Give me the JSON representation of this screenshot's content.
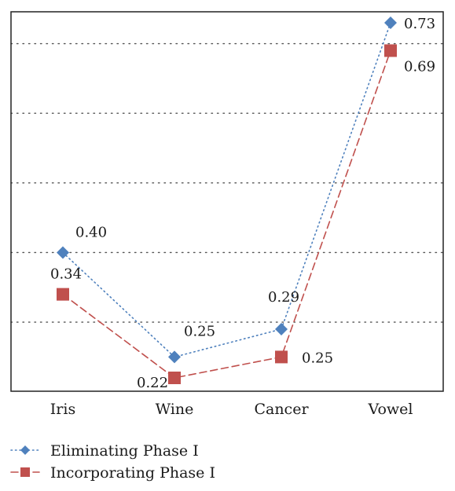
{
  "chart_data": {
    "type": "line",
    "title": "",
    "xlabel": "",
    "ylabel": "",
    "categories": [
      "Iris",
      "Wine",
      "Cancer",
      "Vowel"
    ],
    "ylim": [
      0.2,
      0.75
    ],
    "y_gridlines": [
      0.3,
      0.4,
      0.5,
      0.6,
      0.7
    ],
    "grid": "horizontal dotted",
    "legend_position": "bottom-left",
    "series": [
      {
        "name": "Eliminating Phase I",
        "values": [
          0.4,
          0.25,
          0.29,
          0.73
        ],
        "labels": [
          "0.40",
          "0.25",
          "0.29",
          "0.73"
        ],
        "color": "#4f81bd",
        "marker": "diamond",
        "line_style": "dotted"
      },
      {
        "name": "Incorporating Phase I",
        "values": [
          0.34,
          0.22,
          0.25,
          0.69
        ],
        "labels": [
          "0.34",
          "0.22",
          "0.25",
          "0.69"
        ],
        "color": "#c0504d",
        "marker": "square",
        "line_style": "dashed"
      }
    ]
  }
}
